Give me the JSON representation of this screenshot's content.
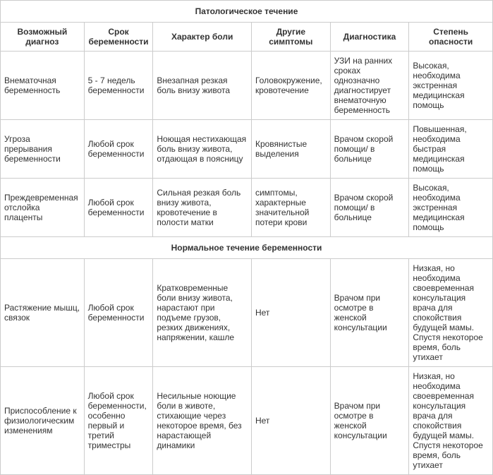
{
  "table": {
    "section1_title": "Патологическое течение",
    "section2_title": "Нормальное течение беременности",
    "headers": {
      "diagnosis": "Возможный диагноз",
      "term": "Срок беременности",
      "pain": "Характер боли",
      "symptoms": "Другие симптомы",
      "diagnostics": "Диагностика",
      "danger": "Степень опасности"
    },
    "pathological_rows": [
      {
        "diagnosis": "Внематочная беременность",
        "term": "5 - 7 недель беременности",
        "pain": "Внезапная резкая боль внизу живота",
        "symptoms": "Головокружение, кровотечение",
        "diagnostics": "УЗИ на ранних сроках однозначно диагностирует внематочную беременность",
        "danger": "Высокая, необходима экстренная медицинская помощь"
      },
      {
        "diagnosis": "Угроза прерывания беременности",
        "term": "Любой срок беременности",
        "pain": "Ноющая нестихающая боль внизу живота, отдающая в поясницу",
        "symptoms": "Кровянистые выделения",
        "diagnostics": "Врачом скорой помощи/ в больнице",
        "danger": "Повышенная, необходима быстрая медицинская помощь"
      },
      {
        "diagnosis": "Преждевременная отслойка плаценты",
        "term": "Любой срок беременности",
        "pain": "Сильная резкая боль внизу живота, кровотечение в полости матки",
        "symptoms": "симптомы, характерные значительной потери крови",
        "diagnostics": "Врачом скорой помощи/ в больнице",
        "danger": "Высокая, необходима экстренная медицинская помощь"
      }
    ],
    "normal_rows": [
      {
        "diagnosis": "Растяжение мышц, связок",
        "term": "Любой срок беременности",
        "pain": "Кратковременные боли внизу живота, нарастают при подъеме грузов, резких движениях, напряжении, кашле",
        "symptoms": "Нет",
        "diagnostics": "Врачом при осмотре в женской консультации",
        "danger": "Низкая, но необходима своевременная консультация врача для спокойствия будущей мамы. Спустя некоторое время, боль утихает"
      },
      {
        "diagnosis": "Приспособление к физиологическим изменениям",
        "term": "Любой срок беременности, особенно первый и третий триместры",
        "pain": "Несильные ноющие боли в животе, стихающие через некоторое время, без нарастающей динамики",
        "symptoms": "Нет",
        "diagnostics": "Врачом при осмотре в женской консультации",
        "danger": "Низкая, но необходима своевременная консультация врача для спокойствия будущей мамы. Спустя некоторое время, боль утихает"
      }
    ]
  }
}
